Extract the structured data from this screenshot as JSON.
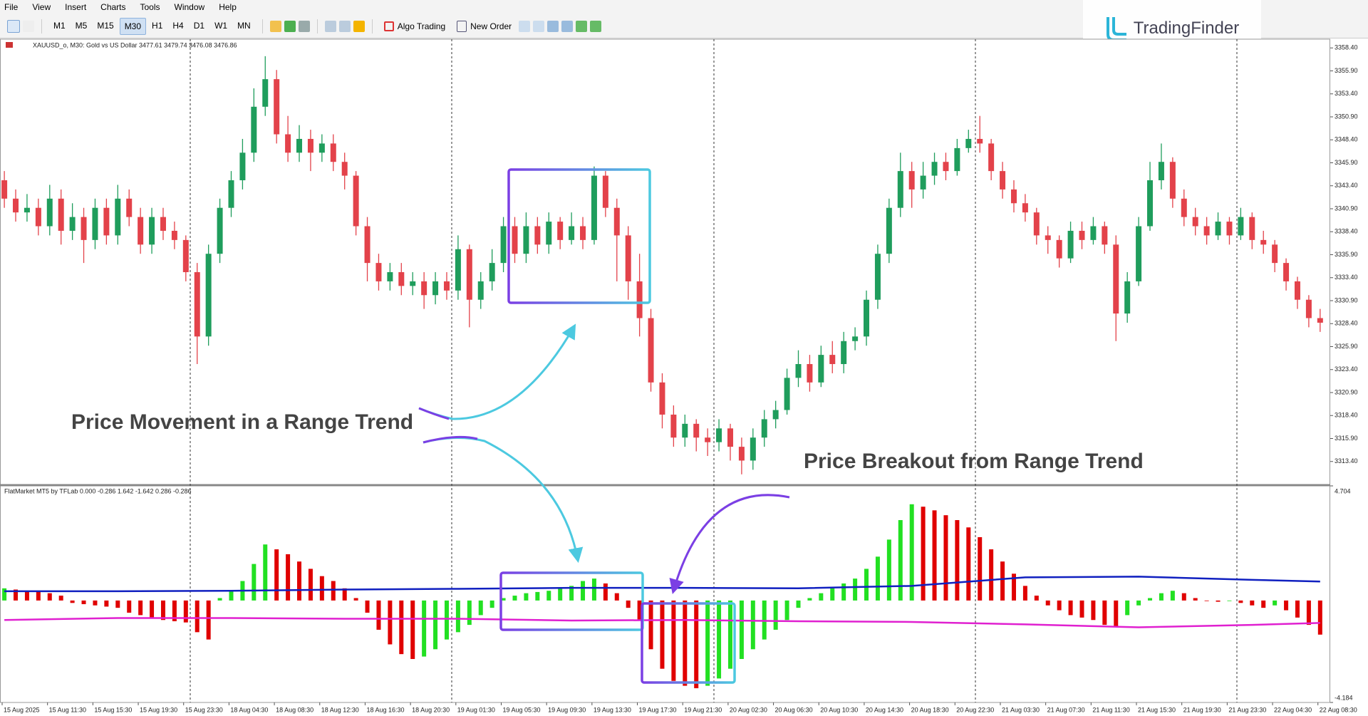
{
  "menu": [
    "File",
    "View",
    "Insert",
    "Charts",
    "Tools",
    "Window",
    "Help"
  ],
  "toolbar": {
    "timeframes": [
      "M1",
      "M5",
      "M15",
      "M30",
      "H1",
      "H4",
      "D1",
      "W1",
      "MN"
    ],
    "active_timeframe": "M30",
    "algo_trading": "Algo Trading",
    "new_order": "New Order"
  },
  "logo": "TradingFinder",
  "chart_data": {
    "type": "candlestick",
    "symbol_info": "XAUUSD_o, M30:  Gold vs US Dollar  3477.61 3479.74 3476.08 3476.86",
    "up_color": "#1f9d5c",
    "down_color": "#e3424a",
    "ylim": [
      3310.9,
      3359.35
    ],
    "yticks": [
      {
        "value": 3358.4,
        "label": "3358.40"
      },
      {
        "value": 3355.9,
        "label": "3355.90"
      },
      {
        "value": 3353.4,
        "label": "3353.40"
      },
      {
        "value": 3350.9,
        "label": "3350.90"
      },
      {
        "value": 3348.4,
        "label": "3348.40"
      },
      {
        "value": 3345.9,
        "label": "3345.90"
      },
      {
        "value": 3343.4,
        "label": "3343.40"
      },
      {
        "value": 3340.9,
        "label": "3340.90"
      },
      {
        "value": 3338.4,
        "label": "3338.40"
      },
      {
        "value": 3335.9,
        "label": "3335.90"
      },
      {
        "value": 3333.4,
        "label": "3333.40"
      },
      {
        "value": 3330.9,
        "label": "3330.90"
      },
      {
        "value": 3328.4,
        "label": "3328.40"
      },
      {
        "value": 3325.9,
        "label": "3325.90"
      },
      {
        "value": 3323.4,
        "label": "3323.40"
      },
      {
        "value": 3320.9,
        "label": "3320.90"
      },
      {
        "value": 3318.4,
        "label": "3318.40"
      },
      {
        "value": 3315.9,
        "label": "3315.90"
      },
      {
        "value": 3313.4,
        "label": "3313.40"
      }
    ],
    "candles": [
      [
        3344,
        3345,
        3341,
        3342
      ],
      [
        3342,
        3343,
        3339.5,
        3340.5
      ],
      [
        3340.5,
        3342.5,
        3339.5,
        3341
      ],
      [
        3341,
        3342,
        3338,
        3339
      ],
      [
        3339,
        3343.5,
        3338,
        3342
      ],
      [
        3342,
        3343,
        3337,
        3338.5
      ],
      [
        3338.5,
        3341.5,
        3337.5,
        3340
      ],
      [
        3340,
        3341,
        3335,
        3337.5
      ],
      [
        3337.5,
        3342,
        3336.5,
        3341
      ],
      [
        3341,
        3342,
        3337,
        3338
      ],
      [
        3338,
        3343.5,
        3337,
        3342
      ],
      [
        3342,
        3343,
        3339,
        3340
      ],
      [
        3340,
        3341,
        3336,
        3337
      ],
      [
        3337,
        3341,
        3336,
        3340
      ],
      [
        3340,
        3341,
        3337.5,
        3338.5
      ],
      [
        3338.5,
        3339.5,
        3336.5,
        3337.5
      ],
      [
        3337.5,
        3338,
        3333,
        3334
      ],
      [
        3334,
        3335,
        3324,
        3327
      ],
      [
        3327,
        3337,
        3326,
        3336
      ],
      [
        3336,
        3342,
        3335,
        3341
      ],
      [
        3341,
        3345,
        3340,
        3344
      ],
      [
        3344,
        3348.5,
        3343,
        3347
      ],
      [
        3347,
        3354,
        3346,
        3352
      ],
      [
        3352,
        3357.5,
        3351,
        3355
      ],
      [
        3355,
        3356,
        3348,
        3349
      ],
      [
        3349,
        3351,
        3346,
        3347
      ],
      [
        3347,
        3350,
        3346,
        3348.5
      ],
      [
        3348.5,
        3349.5,
        3345,
        3347
      ],
      [
        3347,
        3349,
        3346,
        3348
      ],
      [
        3348,
        3349,
        3345,
        3346
      ],
      [
        3346,
        3347,
        3343,
        3344.5
      ],
      [
        3344.5,
        3345,
        3338,
        3339
      ],
      [
        3339,
        3340,
        3333,
        3335
      ],
      [
        3335,
        3336,
        3332,
        3333
      ],
      [
        3333,
        3335,
        3332,
        3334
      ],
      [
        3334,
        3335,
        3331.5,
        3332.5
      ],
      [
        3332.5,
        3334,
        3331.5,
        3333
      ],
      [
        3333,
        3334,
        3330,
        3331.5
      ],
      [
        3331.5,
        3334,
        3330.5,
        3333
      ],
      [
        3333,
        3334,
        3331,
        3332
      ],
      [
        3332,
        3338,
        3331,
        3336.5
      ],
      [
        3336.5,
        3337,
        3328,
        3331
      ],
      [
        3331,
        3334,
        3330,
        3333
      ],
      [
        3333,
        3336.5,
        3332,
        3335
      ],
      [
        3335,
        3340,
        3334,
        3339
      ],
      [
        3339,
        3340,
        3335,
        3336
      ],
      [
        3336,
        3340.5,
        3335,
        3339
      ],
      [
        3339,
        3340,
        3336,
        3337
      ],
      [
        3337,
        3340.5,
        3336,
        3339.5
      ],
      [
        3339.5,
        3340,
        3336.5,
        3337.5
      ],
      [
        3337.5,
        3340.5,
        3337,
        3339
      ],
      [
        3339,
        3340,
        3336.5,
        3337.5
      ],
      [
        3337.5,
        3345.5,
        3337,
        3344.5
      ],
      [
        3344.5,
        3345,
        3340,
        3341
      ],
      [
        3341,
        3342,
        3333,
        3338
      ],
      [
        3338,
        3339,
        3331,
        3333
      ],
      [
        3333,
        3336,
        3327,
        3329
      ],
      [
        3329,
        3330,
        3321,
        3322
      ],
      [
        3322,
        3323,
        3317,
        3318.5
      ],
      [
        3318.5,
        3319.5,
        3315,
        3316
      ],
      [
        3316,
        3318.5,
        3315,
        3317.5
      ],
      [
        3317.5,
        3318,
        3314.5,
        3316
      ],
      [
        3316,
        3317,
        3314,
        3315.5
      ],
      [
        3315.5,
        3318,
        3314.5,
        3317
      ],
      [
        3317,
        3317.5,
        3313.5,
        3315
      ],
      [
        3315,
        3316,
        3312,
        3313.5
      ],
      [
        3313.5,
        3317,
        3312.5,
        3316
      ],
      [
        3316,
        3319,
        3315,
        3318
      ],
      [
        3318,
        3320,
        3317,
        3319
      ],
      [
        3319,
        3323.5,
        3318.5,
        3322.5
      ],
      [
        3322.5,
        3325.5,
        3321.5,
        3324
      ],
      [
        3324,
        3325,
        3321,
        3322
      ],
      [
        3322,
        3326,
        3321.5,
        3325
      ],
      [
        3325,
        3326.5,
        3323,
        3324
      ],
      [
        3324,
        3327.5,
        3323,
        3326.5
      ],
      [
        3326.5,
        3328,
        3325.5,
        3327
      ],
      [
        3327,
        3332,
        3326,
        3331
      ],
      [
        3331,
        3337,
        3330,
        3336
      ],
      [
        3336,
        3342,
        3335,
        3341
      ],
      [
        3341,
        3347,
        3340,
        3345
      ],
      [
        3345,
        3346,
        3341,
        3343
      ],
      [
        3343,
        3346,
        3342,
        3344.5
      ],
      [
        3344.5,
        3347,
        3343.5,
        3346
      ],
      [
        3346,
        3347,
        3344,
        3345
      ],
      [
        3345,
        3348.5,
        3344.5,
        3347.5
      ],
      [
        3347.5,
        3349.5,
        3347,
        3348.5
      ],
      [
        3348.5,
        3351,
        3347,
        3348
      ],
      [
        3348,
        3348.5,
        3344,
        3345
      ],
      [
        3345,
        3346,
        3342,
        3343
      ],
      [
        3343,
        3344,
        3340.5,
        3341.5
      ],
      [
        3341.5,
        3342.5,
        3339.5,
        3340.5
      ],
      [
        3340.5,
        3341,
        3337,
        3338
      ],
      [
        3338,
        3339,
        3336,
        3337.5
      ],
      [
        3337.5,
        3338,
        3334.5,
        3335.5
      ],
      [
        3335.5,
        3339.5,
        3335,
        3338.5
      ],
      [
        3338.5,
        3339.5,
        3336.5,
        3337.5
      ],
      [
        3337.5,
        3340,
        3337,
        3339
      ],
      [
        3339,
        3339.5,
        3336,
        3337
      ],
      [
        3337,
        3338,
        3326.5,
        3329.5
      ],
      [
        3329.5,
        3334,
        3328.5,
        3333
      ],
      [
        3333,
        3340,
        3332.5,
        3339
      ],
      [
        3339,
        3346,
        3338.5,
        3344
      ],
      [
        3344,
        3348,
        3343,
        3346
      ],
      [
        3346,
        3346.5,
        3341,
        3342
      ],
      [
        3342,
        3343,
        3339,
        3340
      ],
      [
        3340,
        3341,
        3338,
        3339
      ],
      [
        3339,
        3340,
        3337,
        3338
      ],
      [
        3338,
        3340.5,
        3337.5,
        3339.5
      ],
      [
        3339.5,
        3340,
        3337,
        3338
      ],
      [
        3338,
        3341,
        3337.5,
        3340
      ],
      [
        3340,
        3340.5,
        3336.5,
        3337.5
      ],
      [
        3337.5,
        3338.5,
        3336,
        3337
      ],
      [
        3337,
        3337.5,
        3334,
        3335
      ],
      [
        3335,
        3335.5,
        3332,
        3333
      ],
      [
        3333,
        3333.5,
        3330,
        3331
      ],
      [
        3331,
        3331.5,
        3328,
        3329
      ],
      [
        3329,
        3330,
        3327.5,
        3328.5
      ]
    ],
    "time_labels": [
      "15 Aug 2025",
      "15 Aug 11:30",
      "15 Aug 15:30",
      "15 Aug 19:30",
      "15 Aug 23:30",
      "18 Aug 04:30",
      "18 Aug 08:30",
      "18 Aug 12:30",
      "18 Aug 16:30",
      "18 Aug 20:30",
      "19 Aug 01:30",
      "19 Aug 05:30",
      "19 Aug 09:30",
      "19 Aug 13:30",
      "19 Aug 17:30",
      "19 Aug 21:30",
      "20 Aug 02:30",
      "20 Aug 06:30",
      "20 Aug 10:30",
      "20 Aug 14:30",
      "20 Aug 18:30",
      "20 Aug 22:30",
      "21 Aug 03:30",
      "21 Aug 07:30",
      "21 Aug 11:30",
      "21 Aug 15:30",
      "21 Aug 19:30",
      "21 Aug 23:30",
      "22 Aug 04:30",
      "22 Aug 08:30"
    ],
    "annotations": [
      "Price Movement in a Range Trend",
      "Price Breakout from Range Trend"
    ],
    "indicator": {
      "title": "FlatMarket MT5 by TFLab 0.000 -0.286 1.642 -1.642 0.286 -0.286",
      "ylim": [
        -4.184,
        4.704
      ],
      "yticks": [
        4.704,
        -4.184
      ],
      "rising_color": "#22e022",
      "falling_color": "#e00000",
      "histogram": [
        0.5,
        0.45,
        0.4,
        0.35,
        0.3,
        0.2,
        -0.1,
        -0.15,
        -0.2,
        -0.25,
        -0.3,
        -0.5,
        -0.6,
        -0.7,
        -0.8,
        -0.85,
        -0.9,
        -1.3,
        -1.6,
        0.1,
        0.4,
        0.8,
        1.5,
        2.3,
        2.1,
        1.9,
        1.6,
        1.3,
        1.0,
        0.8,
        0.5,
        0.1,
        -0.5,
        -1.2,
        -1.8,
        -2.2,
        -2.4,
        -2.3,
        -2.0,
        -1.6,
        -1.3,
        -1.0,
        -0.6,
        -0.3,
        0.1,
        0.2,
        0.3,
        0.35,
        0.4,
        0.5,
        0.6,
        0.8,
        0.9,
        0.7,
        0.3,
        -0.3,
        -0.8,
        -2.0,
        -2.8,
        -3.3,
        -3.5,
        -3.6,
        -3.5,
        -3.2,
        -2.8,
        -2.4,
        -2.0,
        -1.6,
        -1.2,
        -0.8,
        -0.3,
        0.1,
        0.3,
        0.5,
        0.7,
        0.9,
        1.3,
        1.8,
        2.5,
        3.3,
        3.95,
        3.85,
        3.7,
        3.5,
        3.3,
        3.0,
        2.6,
        2.1,
        1.6,
        1.1,
        0.6,
        0.2,
        -0.2,
        -0.4,
        -0.6,
        -0.7,
        -0.8,
        -1.0,
        -1.1,
        -0.6,
        -0.2,
        0.1,
        0.3,
        0.4,
        0.3,
        0.1,
        0.0,
        -0.05,
        0.0,
        -0.1,
        -0.2,
        -0.3,
        -0.2,
        -0.4,
        -0.7,
        -1.0,
        -1.4
      ],
      "lines": [
        {
          "color": "#1020c0",
          "x": [
            0,
            10,
            20,
            30,
            40,
            50,
            60,
            70,
            80,
            90,
            100,
            110,
            116
          ],
          "values": [
            0.38,
            0.38,
            0.4,
            0.45,
            0.48,
            0.52,
            0.52,
            0.5,
            0.6,
            0.95,
            0.98,
            0.85,
            0.78
          ]
        },
        {
          "color": "#e020d0",
          "x": [
            0,
            10,
            20,
            30,
            40,
            50,
            60,
            70,
            80,
            90,
            100,
            110,
            116
          ],
          "values": [
            -0.8,
            -0.72,
            -0.72,
            -0.75,
            -0.75,
            -0.82,
            -0.8,
            -0.85,
            -0.88,
            -0.98,
            -1.1,
            -1.0,
            -0.92
          ]
        }
      ]
    }
  }
}
